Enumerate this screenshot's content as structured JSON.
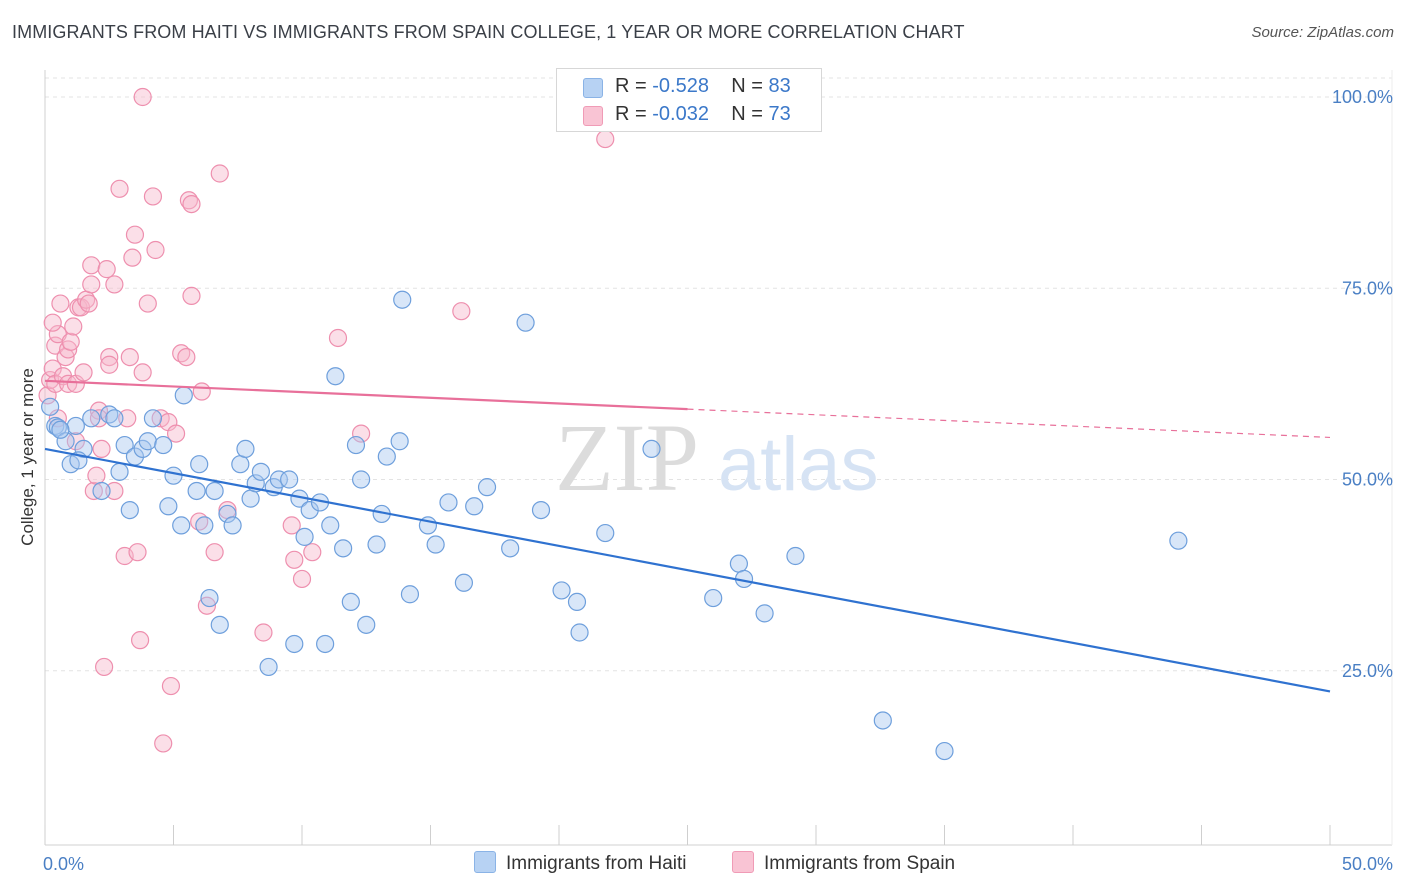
{
  "title": "IMMIGRANTS FROM HAITI VS IMMIGRANTS FROM SPAIN COLLEGE, 1 YEAR OR MORE CORRELATION CHART",
  "source": "Source: ZipAtlas.com",
  "watermark": {
    "zip": "ZIP",
    "atlas": "atlas"
  },
  "legend": {
    "haiti": {
      "r_label": "R =",
      "r_value": "-0.528",
      "n_label": "N =",
      "n_value": "83"
    },
    "spain": {
      "r_label": "R =",
      "r_value": "-0.032",
      "n_label": "N =",
      "n_value": "73"
    }
  },
  "bottom_legend": {
    "haiti": "Immigrants from Haiti",
    "spain": "Immigrants from Spain"
  },
  "colors": {
    "haiti_fill": "#a8c8f0",
    "haiti_stroke": "#6e9fdc",
    "haiti_line": "#2f72d0",
    "spain_fill": "#f7b8cb",
    "spain_stroke": "#ee8fae",
    "spain_line": "#e8709a",
    "label_blue": "#4a7fc4",
    "grid": "#e3e3e3"
  },
  "chart_data": {
    "type": "scatter",
    "title": "IMMIGRANTS FROM HAITI VS IMMIGRANTS FROM SPAIN COLLEGE, 1 YEAR OR MORE CORRELATION CHART",
    "xlabel": "",
    "ylabel": "College, 1 year or more",
    "xlim": [
      0,
      50
    ],
    "ylim": [
      0,
      105
    ],
    "x_tick_labels": [
      "0.0%",
      "50.0%"
    ],
    "y_tick_labels": [
      "100.0%",
      "75.0%",
      "50.0%",
      "25.0%"
    ],
    "y_ticks": [
      100,
      75,
      50,
      25
    ],
    "grid": true,
    "legend_position": "top-center",
    "series": [
      {
        "name": "Immigrants from Haiti",
        "r": -0.528,
        "n": 83,
        "trend": {
          "x0": 0,
          "y0": 54.0,
          "x1": 50,
          "y1": 22.3,
          "dashed_from": null
        },
        "points": [
          [
            0.2,
            59.5
          ],
          [
            0.4,
            57.0
          ],
          [
            0.5,
            56.8
          ],
          [
            0.8,
            55.0
          ],
          [
            1.0,
            52.0
          ],
          [
            1.2,
            57.0
          ],
          [
            1.5,
            54.0
          ],
          [
            1.8,
            58.0
          ],
          [
            2.2,
            48.5
          ],
          [
            2.5,
            58.5
          ],
          [
            2.7,
            58.0
          ],
          [
            2.9,
            51.0
          ],
          [
            3.1,
            54.5
          ],
          [
            3.3,
            46.0
          ],
          [
            3.5,
            53.0
          ],
          [
            3.8,
            54.0
          ],
          [
            4.0,
            55.0
          ],
          [
            4.2,
            58.0
          ],
          [
            4.6,
            54.5
          ],
          [
            4.8,
            46.5
          ],
          [
            5.0,
            50.5
          ],
          [
            5.3,
            44.0
          ],
          [
            5.4,
            61.0
          ],
          [
            5.9,
            48.5
          ],
          [
            6.0,
            52.0
          ],
          [
            6.2,
            44.0
          ],
          [
            6.4,
            34.5
          ],
          [
            6.6,
            48.5
          ],
          [
            6.8,
            31.0
          ],
          [
            7.1,
            45.5
          ],
          [
            7.3,
            44.0
          ],
          [
            7.6,
            52.0
          ],
          [
            7.8,
            54.0
          ],
          [
            8.0,
            47.5
          ],
          [
            8.2,
            49.5
          ],
          [
            8.4,
            51.0
          ],
          [
            8.7,
            25.5
          ],
          [
            8.9,
            49.0
          ],
          [
            9.1,
            50.0
          ],
          [
            9.5,
            50.0
          ],
          [
            9.7,
            28.5
          ],
          [
            9.9,
            47.5
          ],
          [
            10.1,
            42.5
          ],
          [
            10.3,
            46.0
          ],
          [
            10.7,
            47.0
          ],
          [
            10.9,
            28.5
          ],
          [
            11.1,
            44.0
          ],
          [
            11.3,
            63.5
          ],
          [
            11.6,
            41.0
          ],
          [
            11.9,
            34.0
          ],
          [
            12.1,
            54.5
          ],
          [
            12.3,
            50.0
          ],
          [
            12.5,
            31.0
          ],
          [
            12.9,
            41.5
          ],
          [
            13.1,
            45.5
          ],
          [
            13.3,
            53.0
          ],
          [
            13.8,
            55.0
          ],
          [
            13.9,
            73.5
          ],
          [
            14.2,
            35.0
          ],
          [
            14.9,
            44.0
          ],
          [
            15.2,
            41.5
          ],
          [
            15.7,
            47.0
          ],
          [
            16.3,
            36.5
          ],
          [
            16.7,
            46.5
          ],
          [
            17.2,
            49.0
          ],
          [
            18.1,
            41.0
          ],
          [
            18.7,
            70.5
          ],
          [
            19.3,
            46.0
          ],
          [
            20.1,
            35.5
          ],
          [
            20.7,
            34.0
          ],
          [
            20.8,
            30.0
          ],
          [
            21.8,
            43.0
          ],
          [
            23.6,
            54.0
          ],
          [
            26.0,
            34.5
          ],
          [
            27.0,
            39.0
          ],
          [
            27.2,
            37.0
          ],
          [
            28.0,
            32.5
          ],
          [
            29.2,
            40.0
          ],
          [
            32.6,
            18.5
          ],
          [
            35.0,
            14.5
          ],
          [
            44.1,
            42.0
          ],
          [
            0.6,
            56.5
          ],
          [
            1.3,
            52.5
          ]
        ]
      },
      {
        "name": "Immigrants from Spain",
        "r": -0.032,
        "n": 73,
        "trend": {
          "x0": 0,
          "y0": 62.9,
          "x1": 25,
          "y1": 59.2,
          "dashed_to": {
            "x": 50,
            "y": 55.5
          }
        },
        "points": [
          [
            0.1,
            61.0
          ],
          [
            0.2,
            63.0
          ],
          [
            0.3,
            64.5
          ],
          [
            0.4,
            62.5
          ],
          [
            0.4,
            67.5
          ],
          [
            0.5,
            58.0
          ],
          [
            0.5,
            69.0
          ],
          [
            0.6,
            73.0
          ],
          [
            0.7,
            63.5
          ],
          [
            0.8,
            66.0
          ],
          [
            0.9,
            67.0
          ],
          [
            0.9,
            62.5
          ],
          [
            1.0,
            68.0
          ],
          [
            1.1,
            70.0
          ],
          [
            1.2,
            62.5
          ],
          [
            1.2,
            55.0
          ],
          [
            1.3,
            72.5
          ],
          [
            1.4,
            72.5
          ],
          [
            1.5,
            64.0
          ],
          [
            1.6,
            73.5
          ],
          [
            1.7,
            73.0
          ],
          [
            1.8,
            75.5
          ],
          [
            1.8,
            78.0
          ],
          [
            1.9,
            48.5
          ],
          [
            2.0,
            50.5
          ],
          [
            2.1,
            59.0
          ],
          [
            2.1,
            58.0
          ],
          [
            2.2,
            54.0
          ],
          [
            2.3,
            25.5
          ],
          [
            2.4,
            77.5
          ],
          [
            2.5,
            66.0
          ],
          [
            2.5,
            65.0
          ],
          [
            2.7,
            75.5
          ],
          [
            2.7,
            48.5
          ],
          [
            2.9,
            88.0
          ],
          [
            3.1,
            40.0
          ],
          [
            3.2,
            58.0
          ],
          [
            3.3,
            66.0
          ],
          [
            3.4,
            79.0
          ],
          [
            3.5,
            82.0
          ],
          [
            3.6,
            40.5
          ],
          [
            3.7,
            29.0
          ],
          [
            3.8,
            64.0
          ],
          [
            3.8,
            100.0
          ],
          [
            4.0,
            73.0
          ],
          [
            4.2,
            87.0
          ],
          [
            4.3,
            80.0
          ],
          [
            4.5,
            58.0
          ],
          [
            4.6,
            15.5
          ],
          [
            4.8,
            57.5
          ],
          [
            4.9,
            23.0
          ],
          [
            5.1,
            56.0
          ],
          [
            5.3,
            66.5
          ],
          [
            5.5,
            66.0
          ],
          [
            5.6,
            86.5
          ],
          [
            5.7,
            86.0
          ],
          [
            5.7,
            74.0
          ],
          [
            6.0,
            44.5
          ],
          [
            6.1,
            61.5
          ],
          [
            6.3,
            33.5
          ],
          [
            6.6,
            40.5
          ],
          [
            6.8,
            90.0
          ],
          [
            7.1,
            46.0
          ],
          [
            8.5,
            30.0
          ],
          [
            9.6,
            44.0
          ],
          [
            9.7,
            39.5
          ],
          [
            10.0,
            37.0
          ],
          [
            10.4,
            40.5
          ],
          [
            11.4,
            68.5
          ],
          [
            12.3,
            56.0
          ],
          [
            16.2,
            72.0
          ],
          [
            21.8,
            94.5
          ],
          [
            0.3,
            70.5
          ]
        ]
      }
    ]
  }
}
